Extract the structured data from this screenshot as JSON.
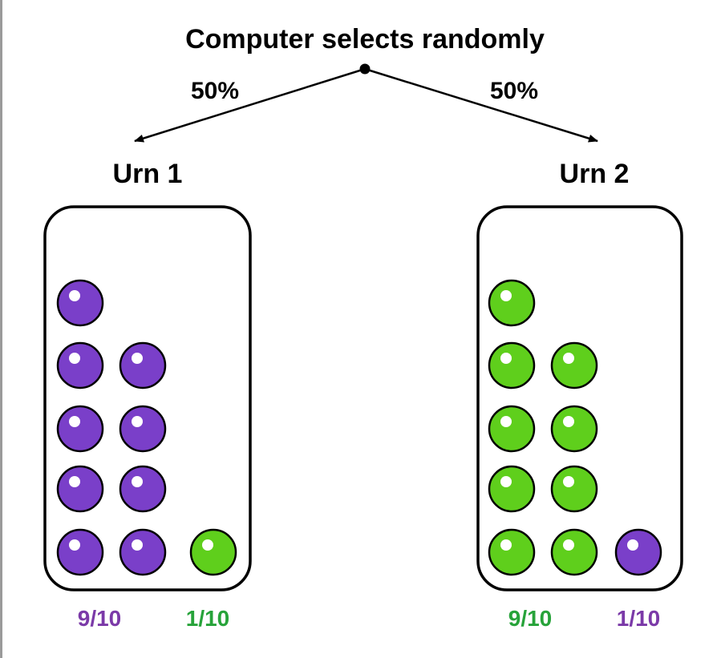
{
  "title": "Computer selects randomly",
  "colors": {
    "purple": "#7a3fc9",
    "green": "#5fcf1c",
    "purple_text": "#7b3aa8",
    "green_text": "#27a33a",
    "stroke": "#000000"
  },
  "branches": [
    {
      "percent": "50%"
    },
    {
      "percent": "50%"
    }
  ],
  "urns": [
    {
      "label": "Urn 1",
      "majority_color": "purple",
      "minority_color": "green",
      "majority_count": 9,
      "minority_count": 1,
      "majority_fraction": "9/10",
      "minority_fraction": "1/10"
    },
    {
      "label": "Urn 2",
      "majority_color": "green",
      "minority_color": "purple",
      "majority_count": 9,
      "minority_count": 1,
      "majority_fraction": "9/10",
      "minority_fraction": "1/10"
    }
  ]
}
